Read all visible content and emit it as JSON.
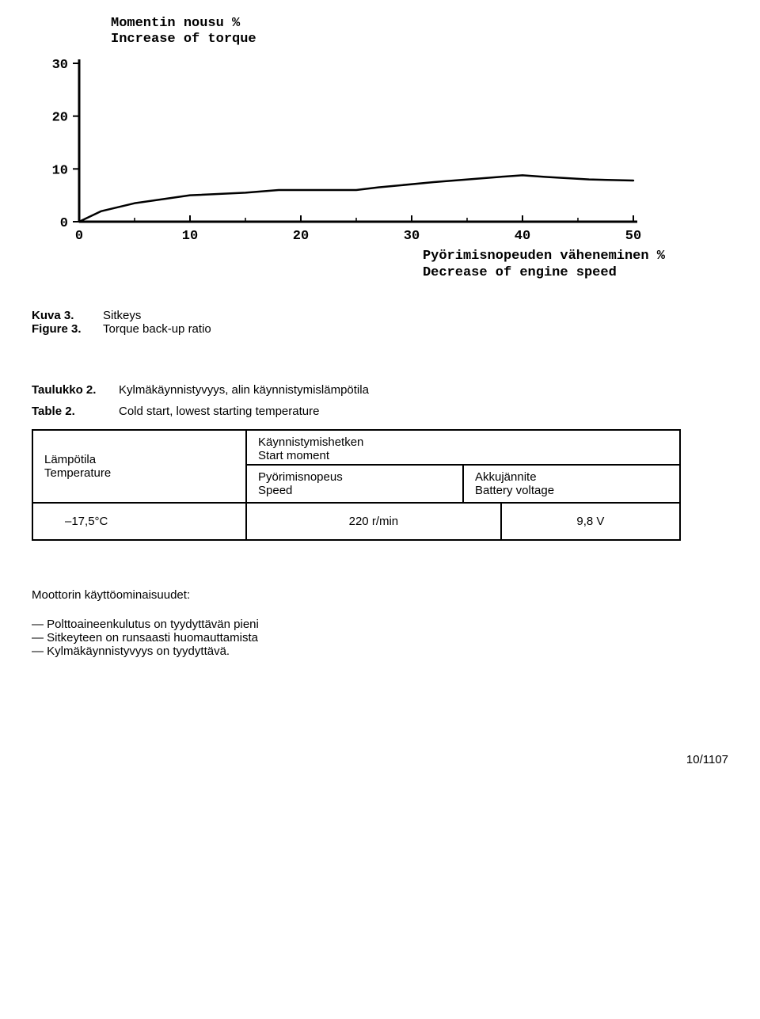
{
  "chart": {
    "type": "line",
    "y_title_fi": "Momentin nousu %",
    "y_title_en": "Increase of torque",
    "x_title_fi": "Pyörimisnopeuden väheneminen %",
    "x_title_en": "Decrease of engine speed",
    "x_ticks": [
      "0",
      "10",
      "20",
      "30",
      "40",
      "50"
    ],
    "y_ticks": [
      "0",
      "10",
      "20",
      "30"
    ],
    "xlim": [
      0,
      50
    ],
    "ylim": [
      0,
      30
    ],
    "line_color": "#000000",
    "line_width": 2.5,
    "axis_color": "#000000",
    "axis_width": 3,
    "background_color": "#ffffff",
    "tick_fontsize": 17,
    "title_fontsize": 17,
    "points": [
      [
        0,
        0
      ],
      [
        2,
        2
      ],
      [
        5,
        3.5
      ],
      [
        10,
        5
      ],
      [
        15,
        5.5
      ],
      [
        18,
        6
      ],
      [
        20,
        6
      ],
      [
        25,
        6
      ],
      [
        27,
        6.5
      ],
      [
        32,
        7.5
      ],
      [
        38,
        8.5
      ],
      [
        40,
        8.8
      ],
      [
        42,
        8.5
      ],
      [
        46,
        8
      ],
      [
        50,
        7.8
      ]
    ]
  },
  "fig_caption": {
    "key_fi": "Kuva 3.",
    "val_fi": "Sitkeys",
    "key_en": "Figure 3.",
    "val_en": "Torque back-up ratio"
  },
  "table_caption": {
    "key_fi": "Taulukko 2.",
    "val_fi": "Kylmäkäynnistyvyys, alin käynnistymislämpötila",
    "key_en": "Table 2.",
    "val_en": "Cold start, lowest starting temperature"
  },
  "table": {
    "col1_fi": "Lämpötila",
    "col1_en": "Temperature",
    "header2_fi": "Käynnistymishetken",
    "header2_en": "Start moment",
    "sub1_fi": "Pyörimisnopeus",
    "sub1_en": "Speed",
    "sub2_fi": "Akkujännite",
    "sub2_en": "Battery voltage",
    "row": {
      "temp": "–17,5°C",
      "speed": "220 r/min",
      "voltage": "9,8 V"
    }
  },
  "properties": {
    "heading": "Moottorin käyttöominaisuudet:",
    "items": [
      "Polttoaineenkulutus on tyydyttävän pieni",
      "Sitkeyteen on runsaasti huomauttamista",
      "Kylmäkäynnistyvyys on tyydyttävä."
    ]
  },
  "page_number": "10/1107"
}
